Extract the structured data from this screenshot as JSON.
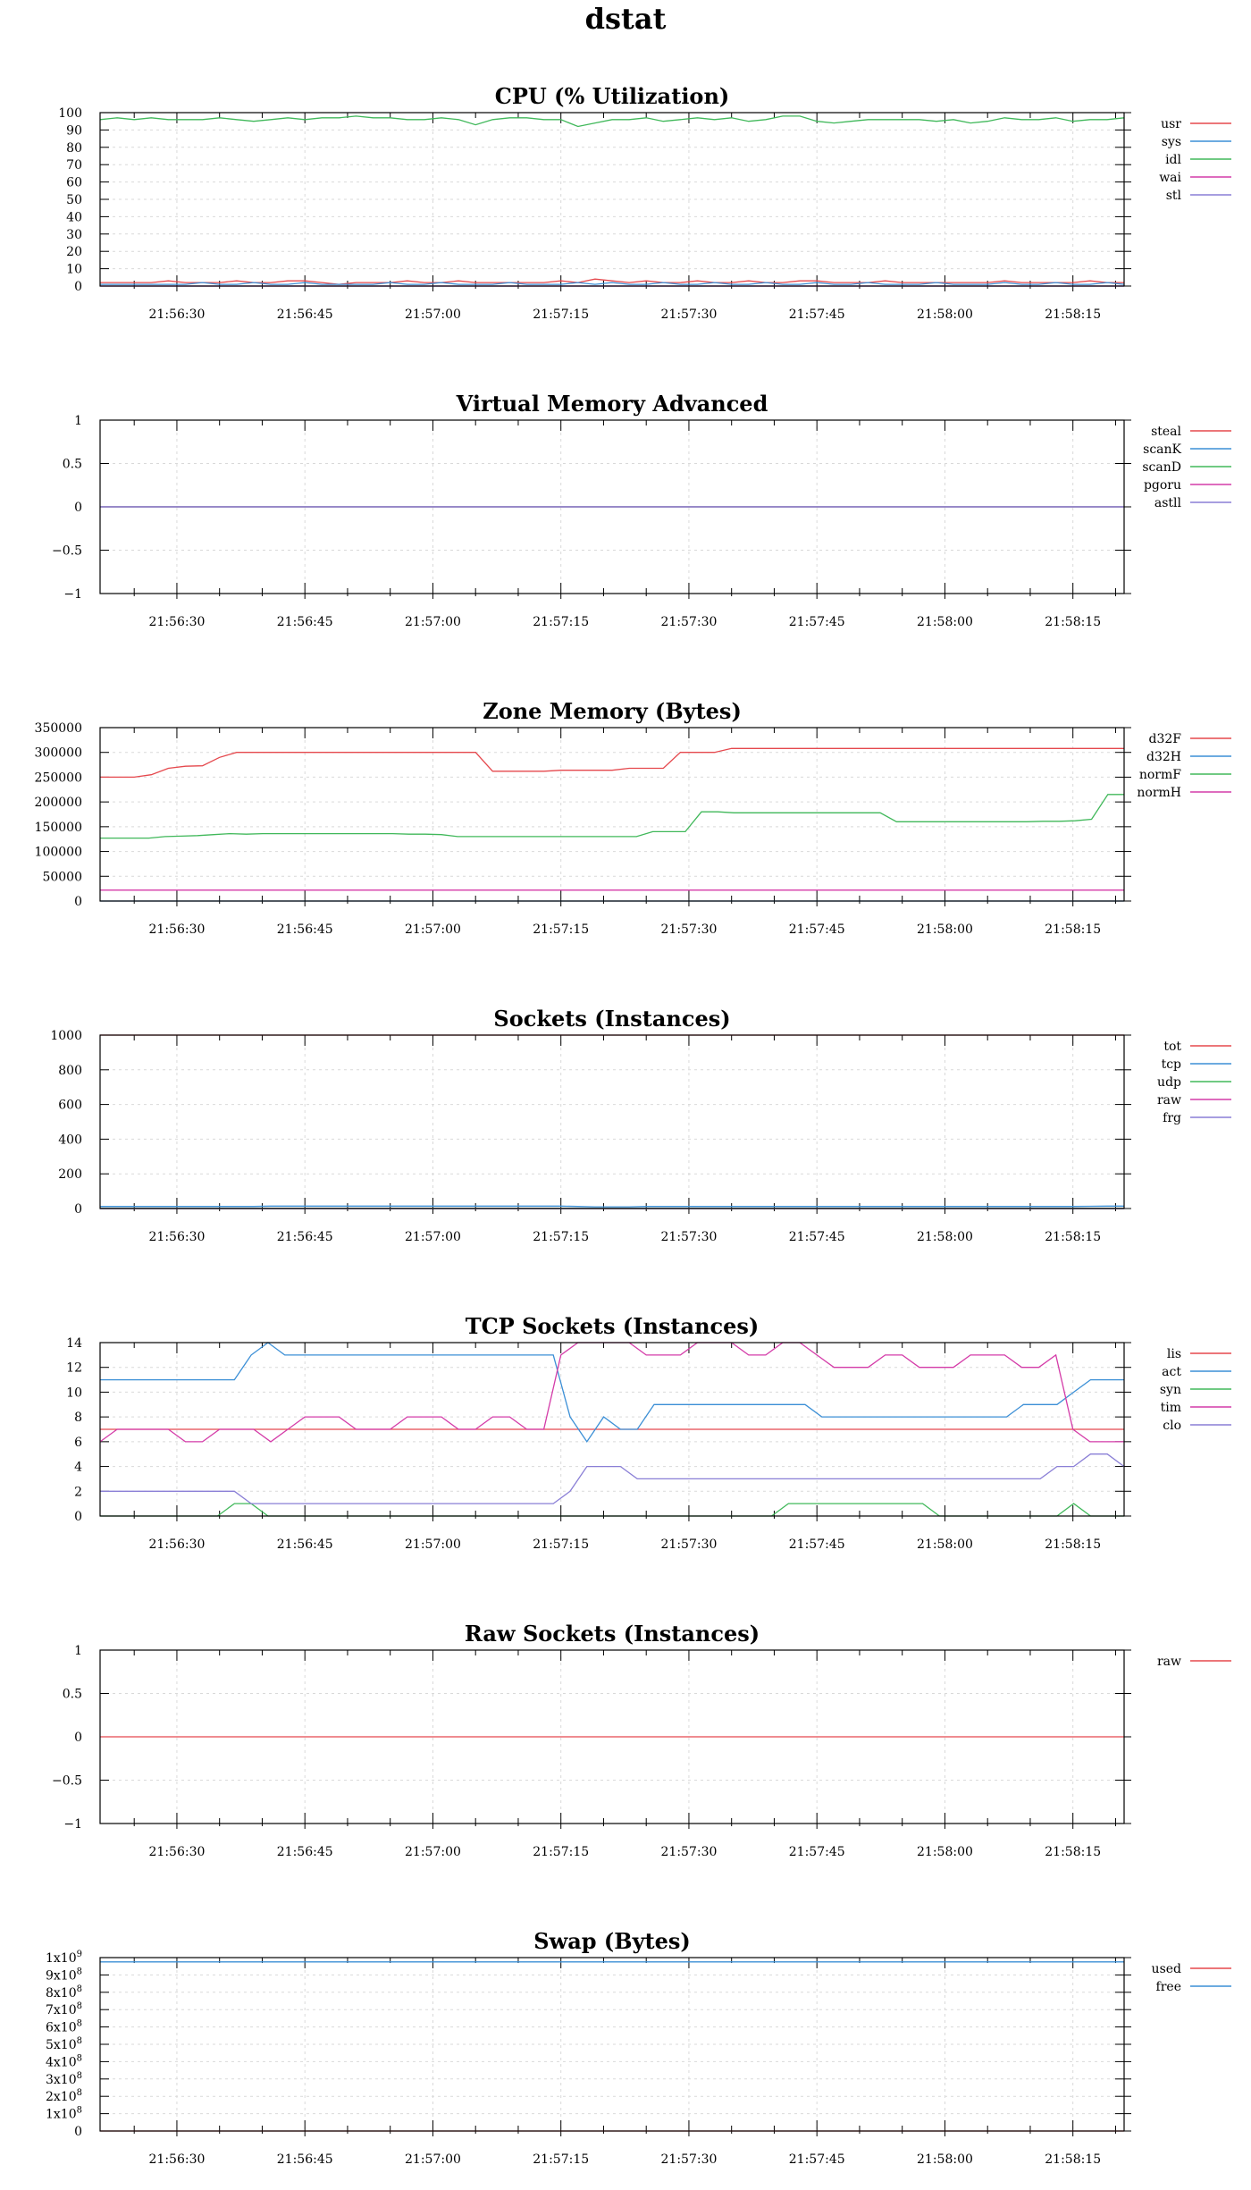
{
  "title": "dstat",
  "colors": {
    "red": "#e5484d",
    "blue": "#3b8fd6",
    "green": "#40b85a",
    "magenta": "#d43ba8",
    "purple": "#8a7fd6"
  },
  "x_ticks": [
    "21:56:30",
    "21:56:45",
    "21:57:00",
    "21:57:15",
    "21:57:30",
    "21:57:45",
    "21:58:00",
    "21:58:15"
  ],
  "chart_data": [
    {
      "type": "line",
      "title": "CPU (% Utilization)",
      "x_range_seconds": [
        21,
        141
      ],
      "ylim": [
        0,
        100
      ],
      "yticks": [
        0,
        10,
        20,
        30,
        40,
        50,
        60,
        70,
        80,
        90,
        100
      ],
      "ytick_labels": [
        "0",
        "10",
        "20",
        "30",
        "40",
        "50",
        "60",
        "70",
        "80",
        "90",
        "100"
      ],
      "grid": true,
      "legend": "right",
      "series": [
        {
          "name": "usr",
          "color": "#e5484d",
          "values": [
            2,
            2,
            2,
            2,
            3,
            2,
            2,
            2,
            3,
            2,
            2,
            3,
            3,
            2,
            1,
            2,
            2,
            2,
            3,
            2,
            2,
            3,
            2,
            2,
            2,
            2,
            2,
            3,
            2,
            4,
            3,
            2,
            3,
            2,
            2,
            3,
            2,
            2,
            3,
            2,
            2,
            3,
            3,
            2,
            2,
            2,
            3,
            2,
            2,
            2,
            2,
            2,
            2,
            3,
            2,
            2,
            2,
            2,
            3,
            2,
            2
          ]
        },
        {
          "name": "sys",
          "color": "#3b8fd6",
          "values": [
            1,
            1,
            1,
            1,
            1,
            1,
            2,
            1,
            1,
            2,
            1,
            1,
            2,
            1,
            1,
            1,
            1,
            2,
            1,
            1,
            2,
            1,
            1,
            1,
            2,
            1,
            1,
            1,
            2,
            1,
            2,
            1,
            1,
            2,
            1,
            1,
            2,
            1,
            1,
            2,
            1,
            1,
            2,
            1,
            1,
            2,
            1,
            1,
            1,
            2,
            1,
            1,
            1,
            2,
            1,
            1,
            2,
            1,
            1,
            2,
            1
          ]
        },
        {
          "name": "idl",
          "color": "#40b85a",
          "values": [
            96,
            97,
            96,
            97,
            96,
            96,
            96,
            97,
            96,
            95,
            96,
            97,
            96,
            97,
            97,
            98,
            97,
            97,
            96,
            96,
            97,
            96,
            93,
            96,
            97,
            97,
            96,
            96,
            92,
            94,
            96,
            96,
            97,
            95,
            96,
            97,
            96,
            97,
            95,
            96,
            98,
            98,
            95,
            94,
            95,
            96,
            96,
            96,
            96,
            95,
            96,
            94,
            95,
            97,
            96,
            96,
            97,
            95,
            96,
            96,
            97
          ]
        },
        {
          "name": "wai",
          "color": "#d43ba8",
          "values": [
            0,
            0,
            0,
            0,
            0,
            0,
            0,
            0,
            0,
            0,
            0,
            0,
            0,
            0,
            0,
            0,
            0,
            0,
            0,
            0,
            0,
            0,
            0,
            0,
            0,
            0,
            0,
            0,
            0,
            0,
            0,
            0,
            0,
            0,
            0,
            0,
            0,
            0,
            0,
            0,
            0,
            0,
            0,
            0,
            0,
            0,
            0,
            0,
            0,
            0,
            0,
            0,
            0,
            0,
            0,
            0,
            0,
            0,
            0,
            0,
            0
          ]
        },
        {
          "name": "stl",
          "color": "#8a7fd6",
          "values": [
            0,
            0,
            0,
            0,
            0,
            0,
            0,
            0,
            0,
            0,
            0,
            0,
            0,
            0,
            0,
            0,
            0,
            0,
            0,
            0,
            0,
            0,
            0,
            0,
            0,
            0,
            0,
            0,
            0,
            0,
            0,
            0,
            0,
            0,
            0,
            0,
            0,
            0,
            0,
            0,
            0,
            0,
            0,
            0,
            0,
            0,
            0,
            0,
            0,
            0,
            0,
            0,
            0,
            0,
            0,
            0,
            0,
            0,
            0,
            0,
            0
          ]
        }
      ]
    },
    {
      "type": "line",
      "title": "Virtual Memory Advanced",
      "x_range_seconds": [
        21,
        141
      ],
      "ylim": [
        -1,
        1
      ],
      "yticks": [
        -1,
        -0.5,
        0,
        0.5,
        1
      ],
      "ytick_labels": [
        "−1",
        "−0.5",
        "0",
        "0.5",
        "1"
      ],
      "grid": true,
      "legend": "right",
      "series": [
        {
          "name": "steal",
          "color": "#e5484d",
          "values": [
            0,
            0
          ]
        },
        {
          "name": "scanK",
          "color": "#3b8fd6",
          "values": [
            0,
            0
          ]
        },
        {
          "name": "scanD",
          "color": "#40b85a",
          "values": [
            0,
            0
          ]
        },
        {
          "name": "pgoru",
          "color": "#d43ba8",
          "values": [
            0,
            0
          ]
        },
        {
          "name": "astll",
          "color": "#8a7fd6",
          "values": [
            0,
            0
          ]
        }
      ]
    },
    {
      "type": "line",
      "title": "Zone Memory (Bytes)",
      "x_range_seconds": [
        21,
        141
      ],
      "ylim": [
        0,
        350000
      ],
      "yticks": [
        0,
        50000,
        100000,
        150000,
        200000,
        250000,
        300000,
        350000
      ],
      "ytick_labels": [
        "0",
        "50000",
        "100000",
        "150000",
        "200000",
        "250000",
        "300000",
        "350000"
      ],
      "grid": true,
      "legend": "right",
      "series": [
        {
          "name": "d32F",
          "color": "#e5484d",
          "values": [
            250000,
            250000,
            250000,
            255000,
            268000,
            272000,
            273000,
            290000,
            300000,
            300000,
            300000,
            300000,
            300000,
            300000,
            300000,
            300000,
            300000,
            300000,
            300000,
            300000,
            300000,
            300000,
            300000,
            262000,
            262000,
            262000,
            262000,
            264000,
            264000,
            264000,
            264000,
            268000,
            268000,
            268000,
            300000,
            300000,
            300000,
            308000,
            308000,
            308000,
            308000,
            308000,
            308000,
            308000,
            308000,
            308000,
            308000,
            308000,
            308000,
            308000,
            308000,
            308000,
            308000,
            308000,
            308000,
            308000,
            308000,
            308000,
            308000,
            308000,
            308000
          ]
        },
        {
          "name": "d32H",
          "color": "#3b8fd6",
          "values": [
            0,
            0
          ]
        },
        {
          "name": "normF",
          "color": "#40b85a",
          "values": [
            127000,
            127000,
            127000,
            127000,
            130000,
            131000,
            132000,
            134000,
            136000,
            135000,
            136000,
            136000,
            136000,
            136000,
            136000,
            136000,
            136000,
            136000,
            136000,
            135000,
            135000,
            134000,
            130000,
            130000,
            130000,
            130000,
            130000,
            130000,
            130000,
            130000,
            130000,
            130000,
            130000,
            130000,
            140000,
            140000,
            140000,
            180000,
            180000,
            178000,
            178000,
            178000,
            178000,
            178000,
            178000,
            178000,
            178000,
            178000,
            178000,
            160000,
            160000,
            160000,
            160000,
            160000,
            160000,
            160000,
            160000,
            160000,
            161000,
            161000,
            162000,
            165000,
            215000,
            215000
          ]
        },
        {
          "name": "normH",
          "color": "#d43ba8",
          "values": [
            22000,
            22000
          ]
        }
      ]
    },
    {
      "type": "line",
      "title": "Sockets (Instances)",
      "x_range_seconds": [
        21,
        141
      ],
      "ylim": [
        0,
        1000
      ],
      "yticks": [
        0,
        200,
        400,
        600,
        800,
        1000
      ],
      "ytick_labels": [
        "0",
        "200",
        "400",
        "600",
        "800",
        "1000"
      ],
      "grid": true,
      "legend": "right",
      "series": [
        {
          "name": "tot",
          "color": "#e5484d",
          "values": [
            1000,
            1000
          ]
        },
        {
          "name": "tcp",
          "color": "#3b8fd6",
          "values": [
            12,
            12,
            12,
            12,
            12,
            12,
            12,
            12,
            12,
            12,
            14,
            14,
            14,
            14,
            14,
            14,
            14,
            14,
            14,
            14,
            14,
            14,
            14,
            14,
            14,
            14,
            14,
            14,
            12,
            10,
            10,
            10,
            12,
            12,
            12,
            12,
            12,
            12,
            12,
            12,
            12,
            12,
            12,
            12,
            12,
            12,
            12,
            12,
            12,
            12,
            12,
            12,
            12,
            12,
            12,
            12,
            12,
            12,
            13,
            14,
            14
          ]
        },
        {
          "name": "udp",
          "color": "#40b85a",
          "values": [
            2,
            2
          ]
        },
        {
          "name": "raw",
          "color": "#d43ba8",
          "values": [
            0,
            0
          ]
        },
        {
          "name": "frg",
          "color": "#8a7fd6",
          "values": [
            0,
            0
          ]
        }
      ]
    },
    {
      "type": "line",
      "title": "TCP Sockets (Instances)",
      "x_range_seconds": [
        21,
        141
      ],
      "ylim": [
        0,
        14
      ],
      "yticks": [
        0,
        2,
        4,
        6,
        8,
        10,
        12,
        14
      ],
      "ytick_labels": [
        "0",
        "2",
        "4",
        "6",
        "8",
        "10",
        "12",
        "14"
      ],
      "grid": true,
      "legend": "right",
      "series": [
        {
          "name": "lis",
          "color": "#e5484d",
          "values": [
            7,
            7
          ]
        },
        {
          "name": "act",
          "color": "#3b8fd6",
          "values": [
            11,
            11,
            11,
            11,
            11,
            11,
            11,
            11,
            11,
            13,
            14,
            13,
            13,
            13,
            13,
            13,
            13,
            13,
            13,
            13,
            13,
            13,
            13,
            13,
            13,
            13,
            13,
            13,
            8,
            6,
            8,
            7,
            7,
            9,
            9,
            9,
            9,
            9,
            9,
            9,
            9,
            9,
            9,
            8,
            8,
            8,
            8,
            8,
            8,
            8,
            8,
            8,
            8,
            8,
            8,
            9,
            9,
            9,
            10,
            11,
            11,
            11
          ]
        },
        {
          "name": "syn",
          "color": "#40b85a",
          "values": [
            0,
            0,
            0,
            0,
            0,
            0,
            0,
            0,
            1,
            1,
            0,
            0,
            0,
            0,
            0,
            0,
            0,
            0,
            0,
            0,
            0,
            0,
            0,
            0,
            0,
            0,
            0,
            0,
            0,
            0,
            0,
            0,
            0,
            0,
            0,
            0,
            0,
            0,
            0,
            0,
            0,
            1,
            1,
            1,
            1,
            1,
            1,
            1,
            1,
            1,
            0,
            0,
            0,
            0,
            0,
            0,
            0,
            0,
            1,
            0,
            0,
            0
          ]
        },
        {
          "name": "tim",
          "color": "#d43ba8",
          "values": [
            6,
            7,
            7,
            7,
            7,
            6,
            6,
            7,
            7,
            7,
            6,
            7,
            8,
            8,
            8,
            7,
            7,
            7,
            8,
            8,
            8,
            7,
            7,
            8,
            8,
            7,
            7,
            13,
            14,
            14,
            14,
            14,
            13,
            13,
            13,
            14,
            14,
            14,
            13,
            13,
            14,
            14,
            13,
            12,
            12,
            12,
            13,
            13,
            12,
            12,
            12,
            13,
            13,
            13,
            12,
            12,
            13,
            7,
            6,
            6,
            6
          ]
        },
        {
          "name": "clo",
          "color": "#8a7fd6",
          "values": [
            2,
            2,
            2,
            2,
            2,
            2,
            2,
            2,
            2,
            1,
            1,
            1,
            1,
            1,
            1,
            1,
            1,
            1,
            1,
            1,
            1,
            1,
            1,
            1,
            1,
            1,
            1,
            1,
            2,
            4,
            4,
            4,
            3,
            3,
            3,
            3,
            3,
            3,
            3,
            3,
            3,
            3,
            3,
            3,
            3,
            3,
            3,
            3,
            3,
            3,
            3,
            3,
            3,
            3,
            3,
            3,
            3,
            4,
            4,
            5,
            5,
            4
          ]
        }
      ]
    },
    {
      "type": "line",
      "title": "Raw Sockets (Instances)",
      "x_range_seconds": [
        21,
        141
      ],
      "ylim": [
        -1,
        1
      ],
      "yticks": [
        -1,
        -0.5,
        0,
        0.5,
        1
      ],
      "ytick_labels": [
        "−1",
        "−0.5",
        "0",
        "0.5",
        "1"
      ],
      "grid": true,
      "legend": "right",
      "series": [
        {
          "name": "raw",
          "color": "#e5484d",
          "values": [
            0,
            0
          ]
        }
      ]
    },
    {
      "type": "line",
      "title": "Swap (Bytes)",
      "x_range_seconds": [
        21,
        141
      ],
      "ylim": [
        0,
        1000000000
      ],
      "yticks": [
        0,
        100000000,
        200000000,
        300000000,
        400000000,
        500000000,
        600000000,
        700000000,
        800000000,
        900000000,
        1000000000
      ],
      "ytick_labels": [
        "0",
        "1x10",
        "2x10",
        "3x10",
        "4x10",
        "5x10",
        "6x10",
        "7x10",
        "8x10",
        "9x10",
        "1x10"
      ],
      "ytick_exponents": [
        "",
        "8",
        "8",
        "8",
        "8",
        "8",
        "8",
        "8",
        "8",
        "8",
        "9"
      ],
      "grid": true,
      "legend": "right",
      "series": [
        {
          "name": "used",
          "color": "#e5484d",
          "values": [
            0,
            0
          ]
        },
        {
          "name": "free",
          "color": "#3b8fd6",
          "values": [
            975000000,
            975000000
          ]
        }
      ]
    }
  ]
}
